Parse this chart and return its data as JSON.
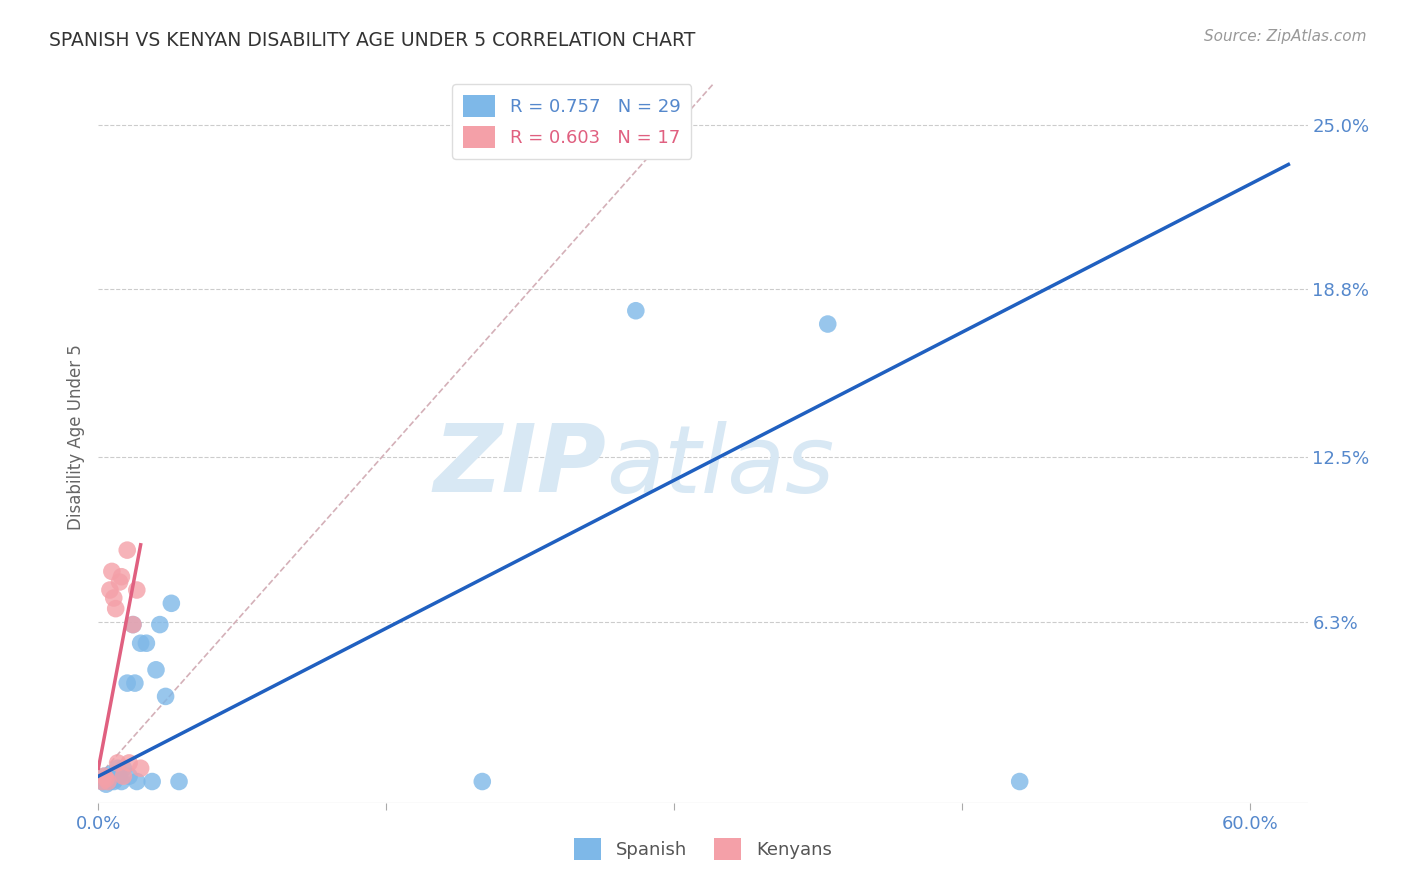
{
  "title": "SPANISH VS KENYAN DISABILITY AGE UNDER 5 CORRELATION CHART",
  "source": "Source: ZipAtlas.com",
  "ylabel": "Disability Age Under 5",
  "xlim": [
    0.0,
    0.63
  ],
  "ylim": [
    -0.005,
    0.27
  ],
  "xtick_positions": [
    0.0,
    0.15,
    0.3,
    0.45,
    0.6
  ],
  "xtick_labels": [
    "0.0%",
    "",
    "",
    "",
    "60.0%"
  ],
  "ytick_labels": [
    "6.3%",
    "12.5%",
    "18.8%",
    "25.0%"
  ],
  "ytick_values": [
    0.063,
    0.125,
    0.188,
    0.25
  ],
  "spanish_x": [
    0.002,
    0.003,
    0.004,
    0.005,
    0.006,
    0.007,
    0.008,
    0.009,
    0.01,
    0.011,
    0.012,
    0.013,
    0.015,
    0.016,
    0.018,
    0.019,
    0.02,
    0.022,
    0.025,
    0.028,
    0.03,
    0.032,
    0.035,
    0.038,
    0.042,
    0.2,
    0.28,
    0.38,
    0.48
  ],
  "spanish_y": [
    0.003,
    0.005,
    0.002,
    0.004,
    0.003,
    0.006,
    0.003,
    0.004,
    0.008,
    0.005,
    0.003,
    0.008,
    0.04,
    0.005,
    0.062,
    0.04,
    0.003,
    0.055,
    0.055,
    0.003,
    0.045,
    0.062,
    0.035,
    0.07,
    0.003,
    0.003,
    0.18,
    0.175,
    0.003
  ],
  "kenyan_x": [
    0.002,
    0.003,
    0.004,
    0.005,
    0.006,
    0.007,
    0.008,
    0.009,
    0.01,
    0.011,
    0.012,
    0.013,
    0.015,
    0.016,
    0.018,
    0.02,
    0.022
  ],
  "kenyan_y": [
    0.003,
    0.005,
    0.004,
    0.003,
    0.075,
    0.082,
    0.072,
    0.068,
    0.01,
    0.078,
    0.08,
    0.005,
    0.09,
    0.01,
    0.062,
    0.075,
    0.008
  ],
  "spanish_R": 0.757,
  "spanish_N": 29,
  "kenyan_R": 0.603,
  "kenyan_N": 17,
  "spanish_color": "#7EB8E8",
  "kenyan_color": "#F4A0A8",
  "spanish_line_color": "#2060C0",
  "kenyan_line_color": "#E06080",
  "ref_line_color": "#D4B0B8",
  "background_color": "#FFFFFF",
  "grid_color": "#CCCCCC",
  "title_color": "#333333",
  "axis_label_color": "#5588CC",
  "watermark_color": "#D8E8F4",
  "spanish_line_x": [
    0.0,
    0.62
  ],
  "spanish_line_y": [
    0.005,
    0.235
  ],
  "kenyan_line_x": [
    0.0,
    0.022
  ],
  "kenyan_line_y": [
    0.008,
    0.092
  ],
  "ref_line_x": [
    0.0,
    0.32
  ],
  "ref_line_y": [
    0.005,
    0.265
  ]
}
